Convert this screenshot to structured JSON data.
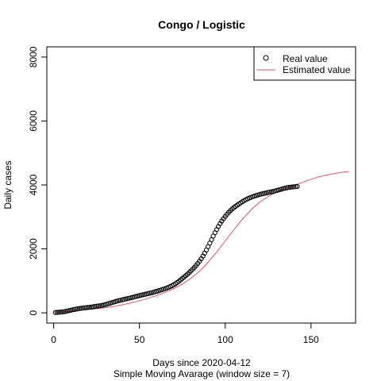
{
  "chart_data": {
    "type": "line",
    "title": "Congo / Logistic",
    "xlabel": "Days since 2020-04-12",
    "xlabel2": "Simple Moving Avarage (window size = 7)",
    "ylabel": "Daily cases",
    "xlim": [
      -4,
      176
    ],
    "ylim": [
      -320,
      8320
    ],
    "xticks": [
      0,
      50,
      100,
      150
    ],
    "yticks": [
      0,
      2000,
      4000,
      6000,
      8000
    ],
    "grid": false,
    "legend_position": "top-right",
    "series": [
      {
        "name": "Real value",
        "kind": "points",
        "color": "#000000",
        "x": [
          1,
          2,
          3,
          4,
          5,
          6,
          7,
          8,
          9,
          10,
          11,
          12,
          13,
          14,
          15,
          16,
          17,
          18,
          19,
          20,
          21,
          22,
          23,
          24,
          25,
          26,
          27,
          28,
          29,
          30,
          31,
          32,
          33,
          34,
          35,
          36,
          37,
          38,
          39,
          40,
          41,
          42,
          43,
          44,
          45,
          46,
          47,
          48,
          49,
          50,
          51,
          52,
          53,
          54,
          55,
          56,
          57,
          58,
          59,
          60,
          61,
          62,
          63,
          64,
          65,
          66,
          67,
          68,
          69,
          70,
          71,
          72,
          73,
          74,
          75,
          76,
          77,
          78,
          79,
          80,
          81,
          82,
          83,
          84,
          85,
          86,
          87,
          88,
          89,
          90,
          91,
          92,
          93,
          94,
          95,
          96,
          97,
          98,
          99,
          100,
          101,
          102,
          103,
          104,
          105,
          106,
          107,
          108,
          109,
          110,
          111,
          112,
          113,
          114,
          115,
          116,
          117,
          118,
          119,
          120,
          121,
          122,
          123,
          124,
          125,
          126,
          127,
          128,
          129,
          130,
          131,
          132,
          133,
          134,
          135,
          136,
          137,
          138,
          139,
          140,
          141,
          142
        ],
        "y": [
          10,
          15,
          18,
          22,
          28,
          35,
          45,
          58,
          70,
          82,
          95,
          105,
          115,
          125,
          135,
          142,
          150,
          156,
          162,
          168,
          175,
          182,
          190,
          198,
          206,
          214,
          222,
          232,
          244,
          258,
          272,
          288,
          304,
          320,
          336,
          352,
          368,
          382,
          396,
          408,
          420,
          432,
          444,
          456,
          470,
          484,
          498,
          512,
          526,
          540,
          552,
          564,
          576,
          588,
          600,
          613,
          627,
          642,
          657,
          672,
          688,
          705,
          722,
          740,
          758,
          778,
          800,
          824,
          850,
          880,
          912,
          948,
          988,
          1030,
          1075,
          1120,
          1165,
          1210,
          1260,
          1310,
          1365,
          1420,
          1480,
          1545,
          1615,
          1690,
          1775,
          1865,
          1965,
          2070,
          2180,
          2290,
          2400,
          2505,
          2605,
          2700,
          2790,
          2870,
          2945,
          3015,
          3080,
          3140,
          3195,
          3245,
          3290,
          3330,
          3368,
          3405,
          3440,
          3475,
          3508,
          3538,
          3565,
          3590,
          3612,
          3632,
          3650,
          3668,
          3685,
          3700,
          3714,
          3727,
          3740,
          3752,
          3764,
          3776,
          3788,
          3800,
          3812,
          3825,
          3840,
          3855,
          3870,
          3885,
          3900,
          3912,
          3922,
          3930,
          3936,
          3942,
          3948,
          3952
        ]
      },
      {
        "name": "Estimated value",
        "kind": "line",
        "color": "#DF536B",
        "x": [
          1,
          5,
          10,
          15,
          20,
          25,
          30,
          35,
          40,
          45,
          50,
          55,
          60,
          65,
          70,
          75,
          80,
          85,
          90,
          95,
          100,
          105,
          110,
          115,
          120,
          125,
          130,
          135,
          140,
          145,
          150,
          155,
          160,
          165,
          170,
          172
        ],
        "y": [
          10,
          28,
          55,
          80,
          105,
          130,
          162,
          200,
          250,
          310,
          380,
          455,
          540,
          640,
          760,
          900,
          1080,
          1300,
          1580,
          1900,
          2250,
          2600,
          2930,
          3220,
          3460,
          3640,
          3780,
          3890,
          3980,
          4080,
          4180,
          4260,
          4320,
          4370,
          4410,
          4420
        ]
      }
    ]
  }
}
